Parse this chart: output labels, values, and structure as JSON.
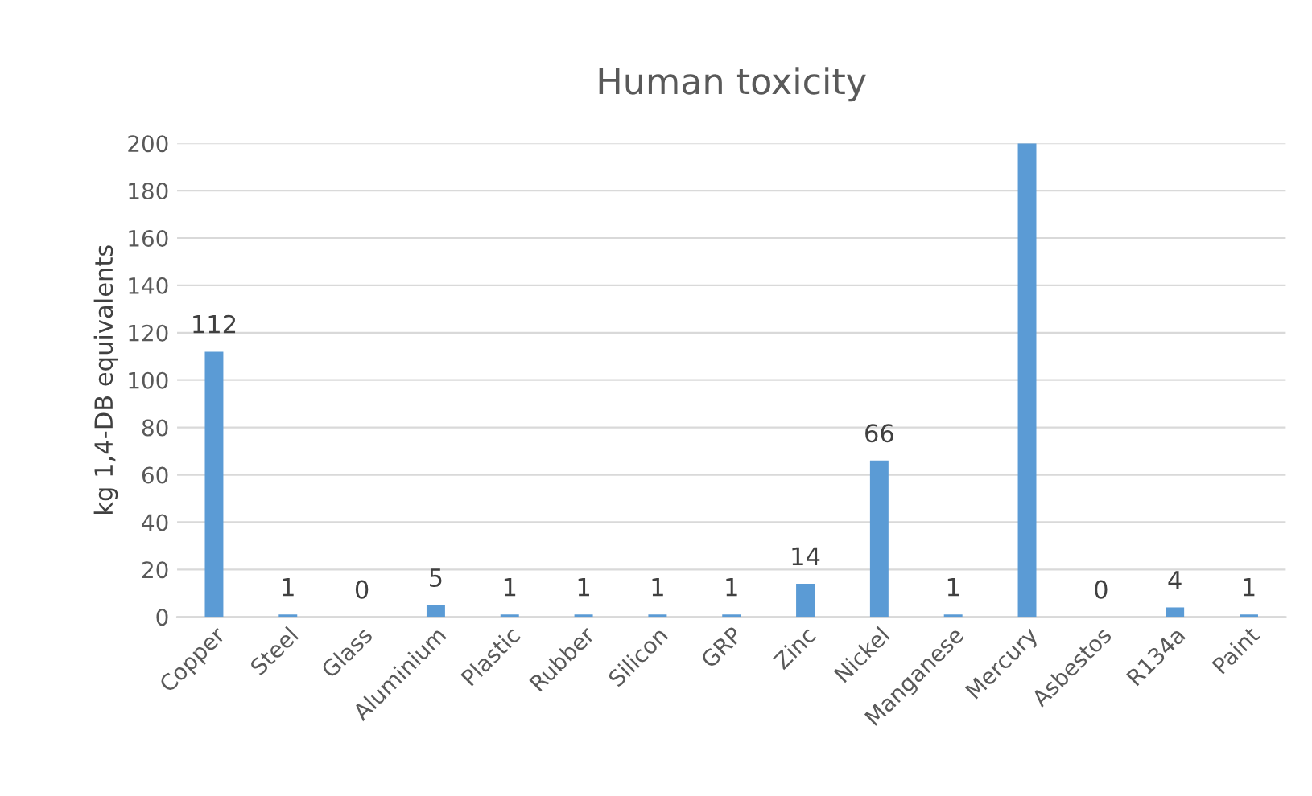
{
  "chart_data": {
    "type": "bar",
    "title": "Human toxicity",
    "ylabel": "kg 1,4-DB equivalents",
    "categories": [
      "Copper",
      "Steel",
      "Glass",
      "Aluminium",
      "Plastic",
      "Rubber",
      "Silicon",
      "GRP",
      "Zinc",
      "Nickel",
      "Manganese",
      "Mercury",
      "Asbestos",
      "R134a",
      "Paint"
    ],
    "values": [
      112,
      1,
      0,
      5,
      1,
      1,
      1,
      1,
      14,
      66,
      1,
      200,
      0,
      4,
      1
    ],
    "value_labels": [
      "112",
      "1",
      "0",
      "5",
      "1",
      "1",
      "1",
      "1",
      "14",
      "66",
      "1",
      null,
      "0",
      "4",
      "1"
    ],
    "color": "#5b9bd5",
    "ylim": [
      0,
      200
    ],
    "yticks": [
      0,
      20,
      40,
      60,
      80,
      100,
      120,
      140,
      160,
      180,
      200
    ],
    "grid": "y",
    "legend": false
  }
}
